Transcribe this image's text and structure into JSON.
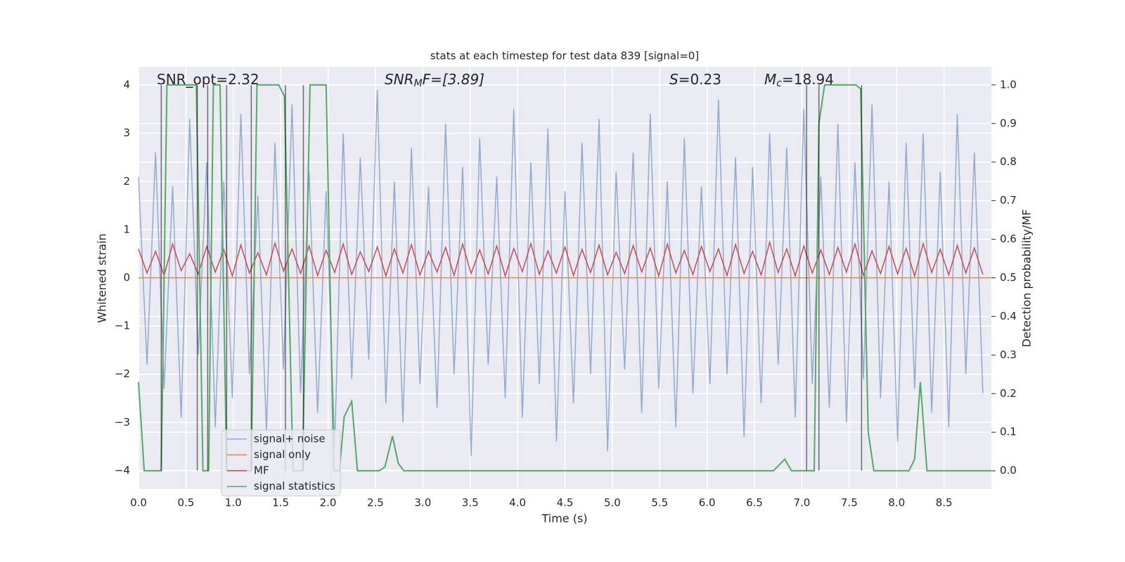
{
  "chart_data": {
    "type": "line",
    "title": "stats at each timestep for test data 839 [signal=0]",
    "xlabel": "Time (s)",
    "ylabel": "Whitened strain",
    "y2label": "Detection probability/MF",
    "annotations": [
      {
        "text": "SNR_opt=2.32"
      },
      {
        "base": "SNR",
        "sub": "M",
        "rest": "F=[3.89]"
      },
      {
        "base": "S",
        "rest": "=0.23"
      },
      {
        "base": "M",
        "sub": "c",
        "rest": "=18.94"
      }
    ],
    "xlim": [
      0,
      9.0
    ],
    "ylim": [
      -4.38,
      4.38
    ],
    "y2lim": [
      -0.047,
      1.047
    ],
    "xticks": [
      {
        "value": 0,
        "label": "0.0"
      },
      0.5,
      {
        "value": 1,
        "label": "1.0"
      },
      1.5,
      {
        "value": 2,
        "label": "2.0"
      },
      2.5,
      {
        "value": 3,
        "label": "3.0"
      },
      3.5,
      {
        "value": 4,
        "label": "4.0"
      },
      4.5,
      {
        "value": 5,
        "label": "5.0"
      },
      5.5,
      {
        "value": 6,
        "label": "6.0"
      },
      6.5,
      {
        "value": 7,
        "label": "7.0"
      },
      7.5,
      {
        "value": 8,
        "label": "8.0"
      },
      8.5
    ],
    "yticks": [
      {
        "value": -4,
        "label": "−4"
      },
      {
        "value": -3,
        "label": "−3"
      },
      {
        "value": -2,
        "label": "−2"
      },
      {
        "value": -1,
        "label": "−1"
      },
      0,
      1,
      2,
      3,
      4
    ],
    "y2ticks": [
      {
        "value": 0,
        "label": "0.0"
      },
      0.1,
      0.2,
      0.3,
      0.4,
      0.5,
      0.6,
      0.7,
      0.8,
      0.9,
      {
        "value": 1,
        "label": "1.0"
      }
    ],
    "grid": true,
    "legend": "lower left",
    "x": [
      0,
      0.09,
      0.18,
      0.27,
      0.36,
      0.45,
      0.54,
      0.63,
      0.72,
      0.81,
      0.9,
      0.99,
      1.08,
      1.17,
      1.26,
      1.35,
      1.44,
      1.53,
      1.62,
      1.71,
      1.8,
      1.89,
      1.98,
      2.07,
      2.16,
      2.25,
      2.34,
      2.43,
      2.52,
      2.61,
      2.7,
      2.79,
      2.88,
      2.97,
      3.06,
      3.15,
      3.24,
      3.33,
      3.42,
      3.51,
      3.6,
      3.69,
      3.78,
      3.87,
      3.96,
      4.05,
      4.14,
      4.23,
      4.32,
      4.41,
      4.5,
      4.59,
      4.68,
      4.77,
      4.86,
      4.95,
      5.04,
      5.13,
      5.22,
      5.31,
      5.4,
      5.49,
      5.58,
      5.67,
      5.76,
      5.85,
      5.94,
      6.03,
      6.12,
      6.21,
      6.3,
      6.39,
      6.48,
      6.57,
      6.66,
      6.75,
      6.84,
      6.93,
      7.02,
      7.11,
      7.2,
      7.29,
      7.38,
      7.47,
      7.56,
      7.65,
      7.74,
      7.83,
      7.92,
      8.01,
      8.1,
      8.19,
      8.28,
      8.37,
      8.46,
      8.55,
      8.64,
      8.73,
      8.82,
      8.91
    ],
    "series": [
      {
        "name": "signal+ noise",
        "color": "#4c72b0",
        "alpha": 0.55,
        "values": [
          2.1,
          -1.8,
          2.6,
          -2.3,
          1.9,
          -2.9,
          3.3,
          -1.6,
          2.4,
          -3.1,
          2.0,
          -2.5,
          3.4,
          -2.0,
          1.7,
          -3.2,
          2.8,
          -1.9,
          3.6,
          -2.4,
          2.2,
          -2.8,
          1.8,
          -3.5,
          3.0,
          -2.1,
          2.5,
          -1.7,
          3.9,
          -2.6,
          2.0,
          -3.0,
          2.7,
          -2.2,
          1.9,
          -2.7,
          3.2,
          -2.0,
          2.3,
          -3.7,
          2.9,
          -1.8,
          2.1,
          -2.5,
          3.5,
          -2.9,
          2.4,
          -2.2,
          3.1,
          -3.4,
          1.8,
          -2.6,
          2.8,
          -2.0,
          3.3,
          -3.6,
          2.2,
          -1.9,
          2.6,
          -2.8,
          3.4,
          -2.3,
          2.0,
          -3.1,
          2.9,
          -2.4,
          1.9,
          -2.2,
          3.7,
          -2.0,
          2.5,
          -3.3,
          2.3,
          -2.6,
          3.0,
          -1.8,
          2.7,
          -2.9,
          3.5,
          -2.2,
          2.1,
          -2.7,
          3.2,
          -3.0,
          2.4,
          -2.1,
          3.6,
          -2.5,
          2.0,
          -3.4,
          2.8,
          -2.3,
          3.0,
          -2.8,
          2.2,
          -3.1,
          3.4,
          -2.0,
          2.6,
          -2.4
        ]
      },
      {
        "name": "signal only",
        "color": "#dd8452",
        "alpha": 1,
        "x": [
          0,
          9.0
        ],
        "values": [
          0,
          0
        ]
      },
      {
        "name": "MF",
        "color": "#c44e52",
        "alpha": 1,
        "values": [
          0.6,
          0.1,
          0.55,
          0.05,
          0.7,
          0.15,
          0.5,
          0.08,
          0.65,
          0.12,
          0.58,
          0.04,
          0.68,
          0.1,
          0.52,
          0.06,
          0.72,
          0.14,
          0.6,
          0.09,
          0.66,
          0.05,
          0.57,
          0.11,
          0.7,
          0.07,
          0.54,
          0.13,
          0.64,
          0.04,
          0.6,
          0.1,
          0.69,
          0.06,
          0.55,
          0.12,
          0.63,
          0.05,
          0.7,
          0.09,
          0.58,
          0.08,
          0.66,
          0.04,
          0.61,
          0.13,
          0.71,
          0.07,
          0.56,
          0.1,
          0.64,
          0.05,
          0.59,
          0.11,
          0.68,
          0.06,
          0.53,
          0.09,
          0.67,
          0.12,
          0.62,
          0.04,
          0.7,
          0.1,
          0.57,
          0.07,
          0.65,
          0.13,
          0.6,
          0.05,
          0.69,
          0.09,
          0.55,
          0.06,
          0.74,
          0.11,
          0.6,
          0.04,
          0.66,
          0.1,
          0.58,
          0.07,
          0.63,
          0.12,
          0.7,
          0.05,
          0.56,
          0.09,
          0.65,
          0.08,
          0.61,
          0.04,
          0.71,
          0.11,
          0.59,
          0.06,
          0.67,
          0.1,
          0.62,
          0.07
        ]
      },
      {
        "name": "signal statistics",
        "color": "#55a868",
        "alpha": 1,
        "axis": "y2",
        "x": [
          0,
          0.06,
          0.24,
          0.3,
          0.61,
          0.68,
          0.74,
          0.79,
          0.86,
          0.93,
          1.0,
          1.19,
          1.25,
          1.48,
          1.54,
          1.63,
          1.73,
          1.81,
          1.98,
          2.06,
          2.12,
          2.17,
          2.25,
          2.31,
          2.54,
          2.6,
          2.68,
          2.74,
          2.8,
          6.7,
          6.76,
          6.82,
          6.89,
          7.13,
          7.18,
          7.24,
          7.57,
          7.62,
          7.7,
          7.76,
          8.13,
          8.19,
          8.25,
          8.32,
          9.0
        ],
        "values": [
          0.23,
          0,
          0,
          1,
          1,
          0,
          0,
          1,
          1,
          0,
          0,
          0,
          1,
          1,
          0.97,
          0,
          0,
          1,
          1,
          0,
          0,
          0.14,
          0.18,
          0,
          0,
          0.01,
          0.09,
          0.02,
          0,
          0,
          0.015,
          0.03,
          0,
          0,
          0.9,
          1,
          1,
          0.99,
          0.1,
          0,
          0,
          0.03,
          0.23,
          0,
          0
        ]
      }
    ],
    "vlines": [
      0.24,
      0.62,
      0.73,
      0.93,
      1.19,
      1.55,
      1.74,
      7.05,
      7.18,
      7.63
    ]
  }
}
